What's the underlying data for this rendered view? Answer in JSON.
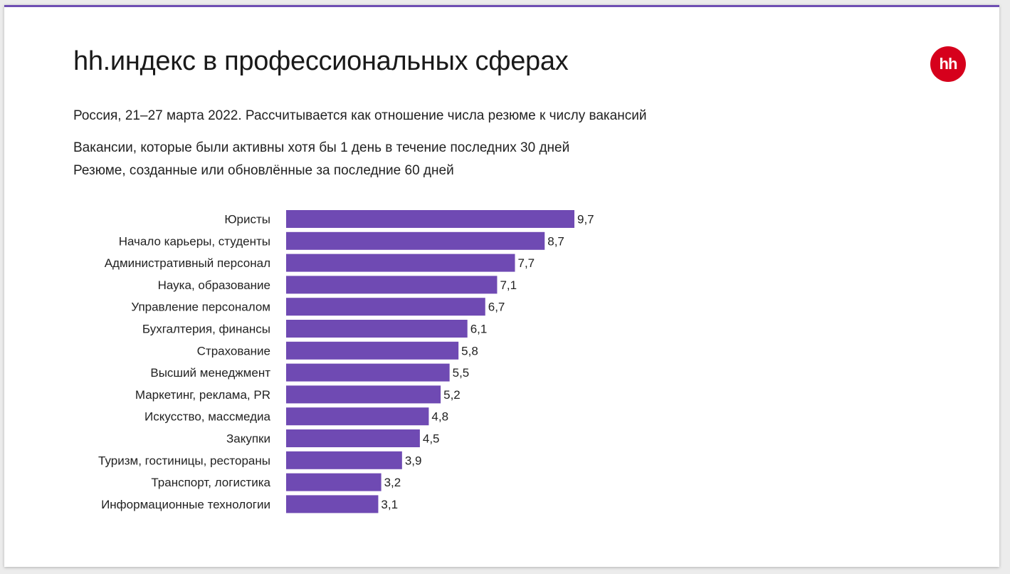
{
  "header": {
    "title": "hh.индекс в профессиональных сферах",
    "subtitle": "Россия, 21–27 марта 2022. Рассчитывается как отношение числа резюме к числу вакансий",
    "note_vacancies": "Вакансии, которые были активны хотя бы 1 день в течение последних 30 дней",
    "note_resumes": "Резюме, созданные или обновлённые за последние 60 дней",
    "logo_text": "hh"
  },
  "colors": {
    "bar": "#6f4ab3",
    "logo": "#d6001c",
    "accent_line": "#6f4fb3"
  },
  "chart_data": {
    "type": "bar",
    "orientation": "horizontal",
    "title": "hh.индекс в профессиональных сферах",
    "xlabel": "",
    "ylabel": "",
    "xlim": [
      0,
      9.7
    ],
    "grid": false,
    "categories": [
      "Юристы",
      "Начало карьеры, студенты",
      "Административный персонал",
      "Наука, образование",
      "Управление персоналом",
      "Бухгалтерия, финансы",
      "Страхование",
      "Высший менеджмент",
      "Маркетинг, реклама, PR",
      "Искусство, массмедиа",
      "Закупки",
      "Туризм, гостиницы, рестораны",
      "Транспорт, логистика",
      "Информационные технологии"
    ],
    "values": [
      9.7,
      8.7,
      7.7,
      7.1,
      6.7,
      6.1,
      5.8,
      5.5,
      5.2,
      4.8,
      4.5,
      3.9,
      3.2,
      3.1
    ],
    "value_labels": [
      "9,7",
      "8,7",
      "7,7",
      "7,1",
      "6,7",
      "6,1",
      "5,8",
      "5,5",
      "5,2",
      "4,8",
      "4,5",
      "3,9",
      "3,2",
      "3,1"
    ]
  }
}
